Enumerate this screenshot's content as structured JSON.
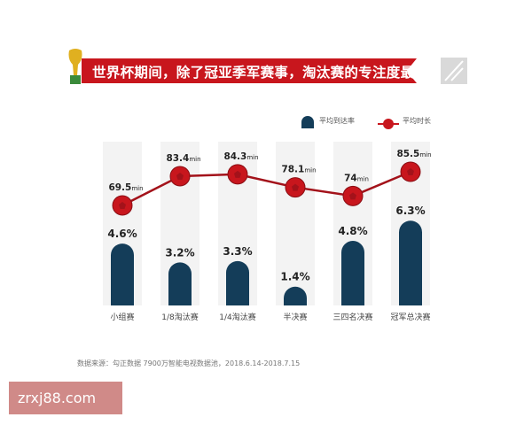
{
  "title": "世界杯期间，除了冠亚季军赛事，淘汰赛的专注度最高",
  "source": "数据来源：勾正数据 7900万智能电视数据池，2018.6.14-2018.7.15",
  "watermark": "zrxj88.com",
  "colors": {
    "bar": "#143d59",
    "line": "#c8161d",
    "banner": "#c8161d",
    "column_bg": "#f3f3f3"
  },
  "chart_data": {
    "type": "bar+line",
    "categories": [
      "小组赛",
      "1/8淘汰赛",
      "1/4淘汰赛",
      "半决赛",
      "三四名决赛",
      "冠军总决赛"
    ],
    "series": [
      {
        "name": "平均到达率",
        "type": "bar",
        "values": [
          4.6,
          3.2,
          3.3,
          1.4,
          4.8,
          6.3
        ],
        "labels": [
          "4.6%",
          "3.2%",
          "3.3%",
          "1.4%",
          "4.8%",
          "6.3%"
        ]
      },
      {
        "name": "平均时长",
        "type": "line",
        "values": [
          69.5,
          83.4,
          84.3,
          78.1,
          74,
          85.5
        ],
        "labels": [
          "69.5",
          "83.4",
          "84.3",
          "78.1",
          "74",
          "85.5"
        ],
        "unit": "min"
      }
    ],
    "legend": "top-right"
  }
}
